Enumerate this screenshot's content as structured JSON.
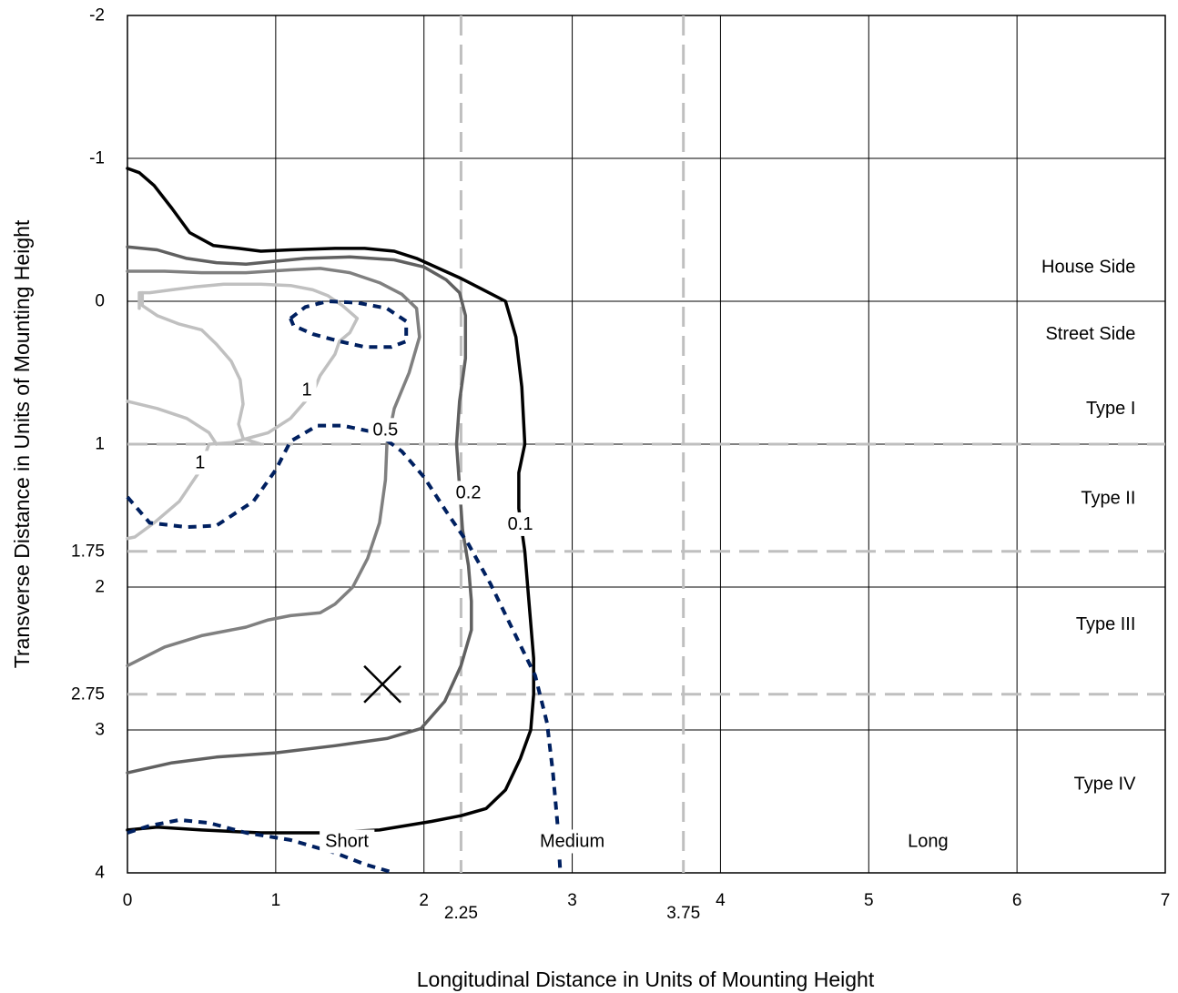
{
  "chart_data": {
    "type": "line",
    "title": "",
    "xlabel": "Longitudinal Distance in Units of Mounting Height",
    "ylabel": "Transverse Distance in Units of Mounting Height",
    "xlim": [
      0,
      7
    ],
    "ylim": [
      -2,
      4
    ],
    "y_inverted": true,
    "grid": true,
    "x_ticks": [
      0,
      1,
      2,
      3,
      4,
      5,
      6,
      7
    ],
    "y_ticks": [
      -2,
      -1,
      0,
      1,
      2,
      3,
      4
    ],
    "extra_x_ticks": [
      2.25,
      3.75
    ],
    "extra_y_ticks": [
      1.75,
      2.75
    ],
    "x_tick_labels": [
      "0",
      "1",
      "2",
      "3",
      "4",
      "5",
      "6",
      "7"
    ],
    "y_tick_labels": [
      "-2",
      "-1",
      "0",
      "1",
      "2",
      "3",
      "4"
    ],
    "extra_x_tick_labels": [
      "2.25",
      "3.75"
    ],
    "extra_y_tick_labels": [
      "1.75",
      "2.75"
    ],
    "reference_lines": {
      "vertical": [
        2.25,
        3.75
      ],
      "horizontal": [
        1,
        1.75,
        2.75
      ],
      "style": "dashed",
      "color": "#bfbfbf"
    },
    "region_labels": [
      {
        "text": "House Side",
        "x": 6.8,
        "y": -0.24
      },
      {
        "text": "Street Side",
        "x": 6.8,
        "y": 0.23
      },
      {
        "text": "Type I",
        "x": 6.8,
        "y": 0.75
      },
      {
        "text": "Type II",
        "x": 6.8,
        "y": 1.38
      },
      {
        "text": "Type III",
        "x": 6.8,
        "y": 2.26
      },
      {
        "text": "Type IV",
        "x": 6.8,
        "y": 3.38
      },
      {
        "text": "Short",
        "x": 1.48,
        "y": 3.78
      },
      {
        "text": "Medium",
        "x": 3.0,
        "y": 3.78
      },
      {
        "text": "Long",
        "x": 5.4,
        "y": 3.78
      }
    ],
    "marker": {
      "symbol": "x",
      "x": 1.72,
      "y": 2.68
    },
    "series": [
      {
        "style": "solid",
        "color": "#000000",
        "points": [
          [
            0,
            -0.93
          ],
          [
            0.08,
            -0.9
          ],
          [
            0.18,
            -0.81
          ],
          [
            0.3,
            -0.65
          ],
          [
            0.42,
            -0.48
          ],
          [
            0.58,
            -0.39
          ],
          [
            0.75,
            -0.37
          ],
          [
            0.9,
            -0.35
          ],
          [
            1.1,
            -0.36
          ],
          [
            1.4,
            -0.37
          ],
          [
            1.6,
            -0.37
          ],
          [
            1.8,
            -0.35
          ],
          [
            1.95,
            -0.3
          ],
          [
            2.1,
            -0.23
          ],
          [
            2.25,
            -0.16
          ],
          [
            2.4,
            -0.08
          ],
          [
            2.55,
            0
          ],
          [
            2.62,
            0.25
          ],
          [
            2.66,
            0.6
          ],
          [
            2.68,
            1.0
          ],
          [
            2.64,
            1.2
          ],
          [
            2.64,
            1.45
          ],
          [
            2.68,
            1.75
          ],
          [
            2.7,
            2.0
          ],
          [
            2.74,
            2.5
          ],
          [
            2.74,
            2.75
          ],
          [
            2.72,
            3.0
          ],
          [
            2.65,
            3.2
          ],
          [
            2.55,
            3.42
          ],
          [
            2.42,
            3.55
          ],
          [
            2.25,
            3.6
          ],
          [
            2.05,
            3.64
          ],
          [
            1.7,
            3.7
          ],
          [
            1.3,
            3.72
          ],
          [
            0.9,
            3.72
          ],
          [
            0.5,
            3.7
          ],
          [
            0.2,
            3.68
          ],
          [
            0,
            3.7
          ]
        ]
      },
      {
        "style": "solid",
        "color": "#606060",
        "points": [
          [
            0,
            -0.38
          ],
          [
            0.2,
            -0.36
          ],
          [
            0.4,
            -0.3
          ],
          [
            0.6,
            -0.27
          ],
          [
            0.8,
            -0.26
          ],
          [
            1.0,
            -0.28
          ],
          [
            1.2,
            -0.3
          ],
          [
            1.5,
            -0.31
          ],
          [
            1.8,
            -0.29
          ],
          [
            2.0,
            -0.24
          ],
          [
            2.15,
            -0.15
          ],
          [
            2.24,
            -0.06
          ],
          [
            2.28,
            0.1
          ],
          [
            2.28,
            0.4
          ],
          [
            2.24,
            0.7
          ],
          [
            2.22,
            1.0
          ],
          [
            2.24,
            1.3
          ],
          [
            2.26,
            1.6
          ],
          [
            2.3,
            1.85
          ],
          [
            2.32,
            2.1
          ],
          [
            2.32,
            2.3
          ],
          [
            2.25,
            2.55
          ],
          [
            2.14,
            2.8
          ],
          [
            1.98,
            2.99
          ],
          [
            1.75,
            3.06
          ],
          [
            1.4,
            3.11
          ],
          [
            1.0,
            3.16
          ],
          [
            0.6,
            3.19
          ],
          [
            0.3,
            3.23
          ],
          [
            0,
            3.3
          ]
        ]
      },
      {
        "style": "solid",
        "color": "#808080",
        "points": [
          [
            0,
            -0.21
          ],
          [
            0.25,
            -0.21
          ],
          [
            0.5,
            -0.2
          ],
          [
            0.8,
            -0.2
          ],
          [
            1.1,
            -0.22
          ],
          [
            1.3,
            -0.23
          ],
          [
            1.5,
            -0.2
          ],
          [
            1.7,
            -0.13
          ],
          [
            1.85,
            -0.05
          ],
          [
            1.95,
            0.05
          ],
          [
            1.97,
            0.25
          ],
          [
            1.9,
            0.5
          ],
          [
            1.8,
            0.75
          ],
          [
            1.75,
            1.0
          ],
          [
            1.74,
            1.25
          ],
          [
            1.7,
            1.55
          ],
          [
            1.62,
            1.8
          ],
          [
            1.52,
            2.0
          ],
          [
            1.4,
            2.12
          ],
          [
            1.3,
            2.18
          ],
          [
            1.1,
            2.2
          ],
          [
            0.95,
            2.23
          ],
          [
            0.8,
            2.28
          ],
          [
            0.5,
            2.34
          ],
          [
            0.25,
            2.42
          ],
          [
            0,
            2.55
          ]
        ]
      },
      {
        "style": "solid",
        "color": "#c0c0c0",
        "points": [
          [
            0.08,
            0.05
          ],
          [
            0.08,
            -0.06
          ],
          [
            0.15,
            -0.06
          ],
          [
            0.3,
            -0.08
          ],
          [
            0.45,
            -0.1
          ],
          [
            0.65,
            -0.12
          ],
          [
            0.9,
            -0.12
          ],
          [
            1.1,
            -0.11
          ],
          [
            1.25,
            -0.08
          ],
          [
            1.35,
            -0.04
          ],
          [
            1.45,
            0.03
          ],
          [
            1.55,
            0.12
          ],
          [
            1.5,
            0.22
          ],
          [
            1.43,
            0.28
          ],
          [
            1.4,
            0.37
          ],
          [
            1.3,
            0.52
          ],
          [
            1.25,
            0.64
          ],
          [
            1.1,
            0.82
          ],
          [
            0.95,
            0.92
          ],
          [
            0.7,
            0.99
          ],
          [
            0.55,
            1.0
          ],
          [
            0.48,
            1.2
          ],
          [
            0.35,
            1.4
          ],
          [
            0.18,
            1.55
          ],
          [
            0.05,
            1.65
          ],
          [
            0,
            1.66
          ]
        ]
      },
      {
        "style": "solid",
        "color": "#c0c0c0",
        "points": [
          [
            0.1,
            -0.06
          ],
          [
            0.1,
            0.03
          ],
          [
            0.2,
            0.1
          ],
          [
            0.35,
            0.16
          ],
          [
            0.5,
            0.2
          ],
          [
            0.6,
            0.3
          ],
          [
            0.7,
            0.42
          ],
          [
            0.76,
            0.55
          ],
          [
            0.78,
            0.72
          ],
          [
            0.75,
            0.86
          ],
          [
            0.78,
            0.96
          ],
          [
            0.9,
            1.0
          ]
        ]
      },
      {
        "style": "solid",
        "color": "#c0c0c0",
        "points": [
          [
            0,
            0.7
          ],
          [
            0.2,
            0.75
          ],
          [
            0.4,
            0.82
          ],
          [
            0.55,
            0.92
          ],
          [
            0.6,
            1.0
          ]
        ]
      },
      {
        "style": "dashed",
        "color": "#002060",
        "points": [
          [
            1.1,
            0.12
          ],
          [
            1.2,
            0.04
          ],
          [
            1.35,
            0
          ],
          [
            1.55,
            0.01
          ],
          [
            1.75,
            0.05
          ],
          [
            1.88,
            0.14
          ],
          [
            1.88,
            0.28
          ],
          [
            1.78,
            0.32
          ],
          [
            1.6,
            0.32
          ],
          [
            1.43,
            0.28
          ],
          [
            1.25,
            0.23
          ],
          [
            1.12,
            0.17
          ],
          [
            1.1,
            0.12
          ]
        ]
      },
      {
        "style": "dashed",
        "color": "#002060",
        "points": [
          [
            0,
            1.37
          ],
          [
            0.15,
            1.55
          ],
          [
            0.4,
            1.58
          ],
          [
            0.6,
            1.57
          ],
          [
            0.85,
            1.4
          ],
          [
            1.0,
            1.18
          ],
          [
            1.1,
            0.98
          ],
          [
            1.28,
            0.87
          ],
          [
            1.45,
            0.87
          ],
          [
            1.68,
            0.92
          ],
          [
            1.85,
            1.05
          ],
          [
            2.0,
            1.23
          ],
          [
            2.15,
            1.47
          ],
          [
            2.3,
            1.7
          ],
          [
            2.45,
            1.98
          ],
          [
            2.6,
            2.3
          ],
          [
            2.75,
            2.62
          ],
          [
            2.83,
            2.95
          ],
          [
            2.87,
            3.3
          ],
          [
            2.9,
            3.65
          ],
          [
            2.92,
            4.0
          ]
        ]
      },
      {
        "style": "dashed",
        "color": "#002060",
        "points": [
          [
            0,
            3.72
          ],
          [
            0.15,
            3.67
          ],
          [
            0.35,
            3.63
          ],
          [
            0.55,
            3.65
          ],
          [
            0.8,
            3.72
          ],
          [
            1.1,
            3.77
          ],
          [
            1.4,
            3.86
          ],
          [
            1.6,
            3.94
          ],
          [
            1.8,
            4.0
          ]
        ]
      }
    ],
    "contour_labels": [
      {
        "text": "1",
        "x": 1.21,
        "y": 0.62
      },
      {
        "text": "1",
        "x": 0.49,
        "y": 1.13
      },
      {
        "text": "0.5",
        "x": 1.74,
        "y": 0.9
      },
      {
        "text": "0.2",
        "x": 2.3,
        "y": 1.34
      },
      {
        "text": "0.1",
        "x": 2.65,
        "y": 1.56
      }
    ]
  }
}
